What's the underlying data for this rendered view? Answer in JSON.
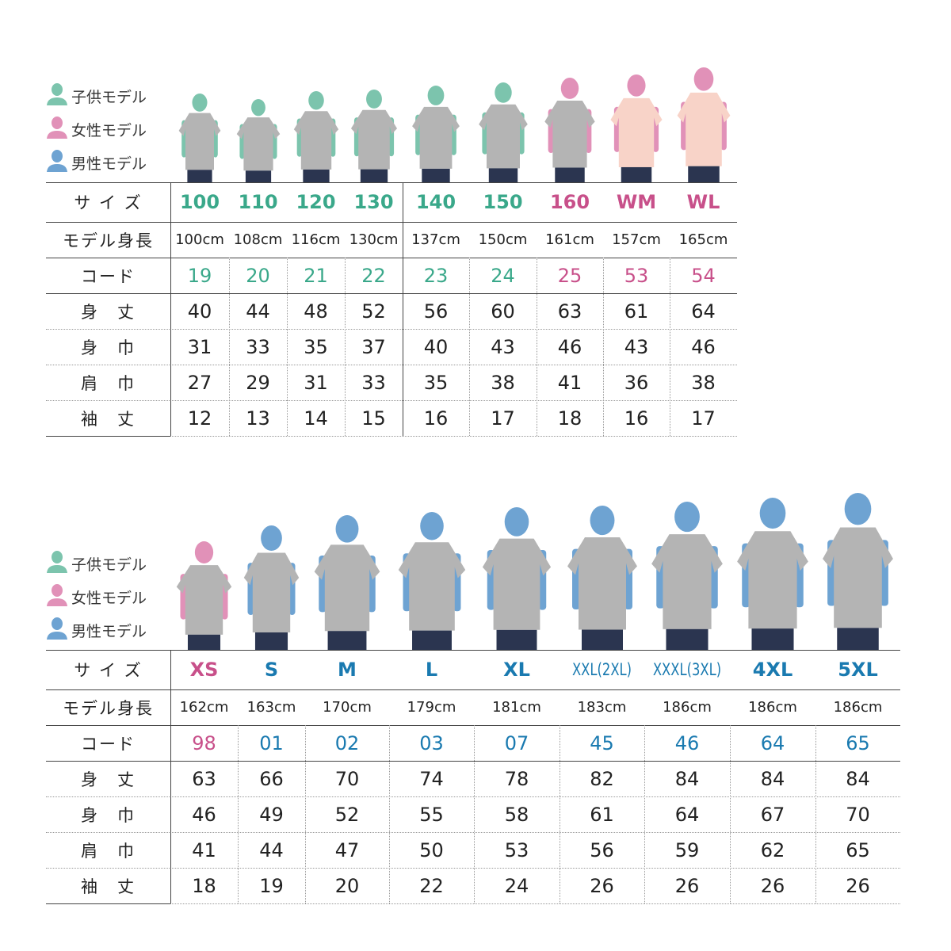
{
  "colors": {
    "kids": "#3aa88a",
    "women": "#c8508a",
    "men": "#1a7ab0",
    "kids_model": "#7cc4ad",
    "women_model": "#e191b8",
    "men_model": "#6ea3d2",
    "shirt_gray": "#b4b4b4",
    "shirt_pink": "#f8d3c8",
    "jeans": "#2b3550"
  },
  "legend": [
    {
      "label": "子供モデル",
      "type": "kids",
      "icon": "person-icon"
    },
    {
      "label": "女性モデル",
      "type": "women",
      "icon": "person-icon"
    },
    {
      "label": "男性モデル",
      "type": "men",
      "icon": "person-icon"
    }
  ],
  "row_labels": [
    "サ イ ズ",
    "モデル身長",
    "コード",
    "身　丈",
    "身　巾",
    "肩　巾",
    "袖　丈"
  ],
  "tables": [
    {
      "columns": [
        {
          "size": "100",
          "type": "kids",
          "height": "100cm",
          "code": "19",
          "values": [
            "40",
            "31",
            "27",
            "12"
          ]
        },
        {
          "size": "110",
          "type": "kids",
          "height": "108cm",
          "code": "20",
          "values": [
            "44",
            "33",
            "29",
            "13"
          ]
        },
        {
          "size": "120",
          "type": "kids",
          "height": "116cm",
          "code": "21",
          "values": [
            "48",
            "35",
            "31",
            "14"
          ]
        },
        {
          "size": "130",
          "type": "kids",
          "height": "130cm",
          "code": "22",
          "values": [
            "52",
            "37",
            "33",
            "15"
          ]
        },
        {
          "size": "140",
          "type": "kids",
          "height": "137cm",
          "code": "23",
          "values": [
            "56",
            "40",
            "35",
            "16"
          ]
        },
        {
          "size": "150",
          "type": "kids",
          "height": "150cm",
          "code": "24",
          "values": [
            "60",
            "43",
            "38",
            "17"
          ]
        },
        {
          "size": "160",
          "type": "women",
          "height": "161cm",
          "code": "25",
          "values": [
            "63",
            "46",
            "41",
            "18"
          ]
        },
        {
          "size": "WM",
          "type": "women",
          "height": "157cm",
          "code": "53",
          "values": [
            "61",
            "43",
            "36",
            "16"
          ]
        },
        {
          "size": "WL",
          "type": "women",
          "height": "165cm",
          "code": "54",
          "values": [
            "64",
            "46",
            "38",
            "17"
          ]
        }
      ]
    },
    {
      "columns": [
        {
          "size": "XS",
          "type": "women",
          "height": "162cm",
          "code": "98",
          "values": [
            "63",
            "46",
            "41",
            "18"
          ]
        },
        {
          "size": "S",
          "type": "men",
          "height": "163cm",
          "code": "01",
          "values": [
            "66",
            "49",
            "44",
            "19"
          ]
        },
        {
          "size": "M",
          "type": "men",
          "height": "170cm",
          "code": "02",
          "values": [
            "70",
            "52",
            "47",
            "20"
          ]
        },
        {
          "size": "L",
          "type": "men",
          "height": "179cm",
          "code": "03",
          "values": [
            "74",
            "55",
            "50",
            "22"
          ]
        },
        {
          "size": "XL",
          "type": "men",
          "height": "181cm",
          "code": "07",
          "values": [
            "78",
            "58",
            "53",
            "24"
          ]
        },
        {
          "size": "XXL(2XL)",
          "type": "men",
          "height": "183cm",
          "code": "45",
          "values": [
            "82",
            "61",
            "56",
            "26"
          ]
        },
        {
          "size": "XXXL(3XL)",
          "type": "men",
          "height": "186cm",
          "code": "46",
          "values": [
            "84",
            "64",
            "59",
            "26"
          ]
        },
        {
          "size": "4XL",
          "type": "men",
          "height": "186cm",
          "code": "64",
          "values": [
            "84",
            "67",
            "62",
            "26"
          ]
        },
        {
          "size": "5XL",
          "type": "men",
          "height": "186cm",
          "code": "65",
          "values": [
            "84",
            "70",
            "65",
            "26"
          ]
        }
      ]
    }
  ]
}
